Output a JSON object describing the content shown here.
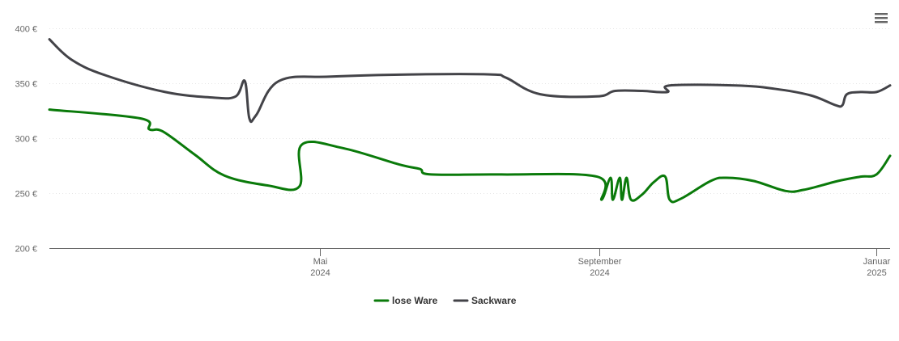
{
  "chart_data": {
    "type": "line",
    "title": "",
    "xlabel": "",
    "ylabel": "",
    "ylim": [
      200,
      400
    ],
    "yticks": [
      {
        "value": 200,
        "label": "200 €"
      },
      {
        "value": 250,
        "label": "250 €"
      },
      {
        "value": 300,
        "label": "300 €"
      },
      {
        "value": 350,
        "label": "350 €"
      },
      {
        "value": 400,
        "label": "400 €"
      }
    ],
    "xlim": [
      "2024-01-03",
      "2025-01-07"
    ],
    "xticks": [
      {
        "date": "2024-05-01",
        "label": "Mai",
        "sublabel": "2024"
      },
      {
        "date": "2024-09-01",
        "label": "September",
        "sublabel": "2024"
      },
      {
        "date": "2025-01-01",
        "label": "Januar",
        "sublabel": "2025"
      }
    ],
    "grid": true,
    "legend_position": "bottom-center",
    "series": [
      {
        "name": "lose Ware",
        "color": "#0a7a0a",
        "points": [
          [
            "2024-01-03",
            326
          ],
          [
            "2024-02-12",
            318
          ],
          [
            "2024-02-16",
            308
          ],
          [
            "2024-02-22",
            306
          ],
          [
            "2024-03-07",
            285
          ],
          [
            "2024-03-20",
            266
          ],
          [
            "2024-04-08",
            257
          ],
          [
            "2024-04-22",
            256
          ],
          [
            "2024-04-23",
            294
          ],
          [
            "2024-05-11",
            291
          ],
          [
            "2024-06-05",
            276
          ],
          [
            "2024-06-14",
            272
          ],
          [
            "2024-06-19",
            267
          ],
          [
            "2024-07-20",
            267
          ],
          [
            "2024-08-31",
            265
          ],
          [
            "2024-09-02",
            244
          ],
          [
            "2024-09-06",
            264
          ],
          [
            "2024-09-07",
            244
          ],
          [
            "2024-09-10",
            264
          ],
          [
            "2024-09-11",
            244
          ],
          [
            "2024-09-13",
            264
          ],
          [
            "2024-09-15",
            244
          ],
          [
            "2024-09-20",
            249
          ],
          [
            "2024-09-25",
            260
          ],
          [
            "2024-09-30",
            265
          ],
          [
            "2024-10-02",
            244
          ],
          [
            "2024-10-07",
            245
          ],
          [
            "2024-10-20",
            261
          ],
          [
            "2024-10-27",
            264
          ],
          [
            "2024-11-08",
            261
          ],
          [
            "2024-11-22",
            252
          ],
          [
            "2024-11-30",
            253
          ],
          [
            "2024-12-15",
            261
          ],
          [
            "2024-12-25",
            265
          ],
          [
            "2025-01-01",
            267
          ],
          [
            "2025-01-07",
            284
          ]
        ]
      },
      {
        "name": "Sackware",
        "color": "#434348",
        "points": [
          [
            "2024-01-03",
            390
          ],
          [
            "2024-01-13",
            371
          ],
          [
            "2024-01-28",
            357
          ],
          [
            "2024-02-23",
            342
          ],
          [
            "2024-03-15",
            337
          ],
          [
            "2024-03-25",
            338
          ],
          [
            "2024-03-29",
            352
          ],
          [
            "2024-03-31",
            318
          ],
          [
            "2024-04-03",
            321
          ],
          [
            "2024-04-13",
            352
          ],
          [
            "2024-05-06",
            356
          ],
          [
            "2024-06-11",
            358
          ],
          [
            "2024-07-15",
            358
          ],
          [
            "2024-07-22",
            355
          ],
          [
            "2024-08-06",
            340
          ],
          [
            "2024-08-31",
            338
          ],
          [
            "2024-09-08",
            343
          ],
          [
            "2024-09-20",
            343
          ],
          [
            "2024-10-01",
            342
          ],
          [
            "2024-10-02",
            348
          ],
          [
            "2024-10-31",
            348
          ],
          [
            "2024-11-17",
            345
          ],
          [
            "2024-12-03",
            339
          ],
          [
            "2024-12-14",
            330
          ],
          [
            "2024-12-17",
            330
          ],
          [
            "2024-12-19",
            340
          ],
          [
            "2024-12-25",
            342
          ],
          [
            "2025-01-01",
            342
          ],
          [
            "2025-01-07",
            348
          ]
        ]
      }
    ]
  },
  "menu": {
    "icon": "hamburger-menu-icon"
  }
}
